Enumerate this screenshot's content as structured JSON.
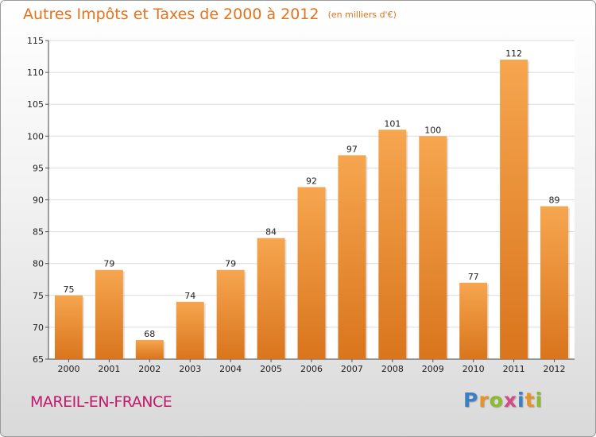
{
  "header": {
    "title": "Autres Impôts et Taxes de 2000 à 2012",
    "unit": "(en milliers d'€)"
  },
  "footer": {
    "commune": "MAREIL-EN-FRANCE",
    "logo_letters": [
      "P",
      "r",
      "o",
      "x",
      "i",
      "t",
      "i"
    ],
    "logo_colors": [
      "#3b7fc4",
      "#e8932a",
      "#8dbb2e",
      "#d64a8a",
      "#3b7fc4",
      "#e8932a",
      "#8dbb2e"
    ]
  },
  "colors": {
    "title": "#e2741f",
    "commune": "#c2186a",
    "bar_light": "#f6a64f",
    "bar_dark": "#d9751d"
  },
  "chart_data": {
    "type": "bar",
    "title": "Autres Impôts et Taxes de 2000 à 2012",
    "subtitle": "(en milliers d'€)",
    "xlabel": "",
    "ylabel": "",
    "categories": [
      "2000",
      "2001",
      "2002",
      "2003",
      "2004",
      "2005",
      "2006",
      "2007",
      "2008",
      "2009",
      "2010",
      "2011",
      "2012"
    ],
    "values": [
      75,
      79,
      68,
      74,
      79,
      84,
      92,
      97,
      101,
      100,
      77,
      112,
      89
    ],
    "ylim": [
      65,
      115
    ],
    "yticks": [
      65,
      70,
      75,
      80,
      85,
      90,
      95,
      100,
      105,
      110,
      115
    ],
    "grid": true,
    "legend": "none"
  }
}
